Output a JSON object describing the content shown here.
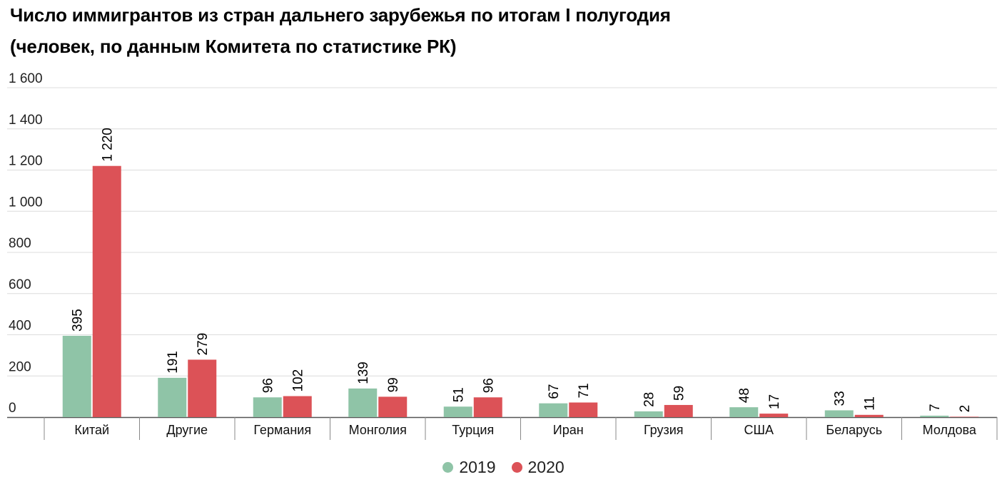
{
  "title_line1": "Число иммигрантов из стран дальнего зарубежья по итогам I полугодия",
  "title_line2": "(человек, по данным Комитета по статистике РК)",
  "chart_data": {
    "type": "bar",
    "title": "Число иммигрантов из стран дальнего зарубежья по итогам I полугодия (человек, по данным Комитета по статистике РК)",
    "categories": [
      "Китай",
      "Другие",
      "Германия",
      "Монголия",
      "Турция",
      "Иран",
      "Грузия",
      "США",
      "Беларусь",
      "Молдова"
    ],
    "series": [
      {
        "name": "2019",
        "color": "#8fc4a7",
        "values": [
          395,
          191,
          96,
          139,
          51,
          67,
          28,
          48,
          33,
          7
        ]
      },
      {
        "name": "2020",
        "color": "#dc5257",
        "values": [
          1220,
          279,
          102,
          99,
          96,
          71,
          59,
          17,
          11,
          2
        ]
      }
    ],
    "yticks": [
      0,
      200,
      400,
      600,
      800,
      1000,
      1200,
      1400,
      1600
    ],
    "ytick_labels": [
      "0",
      "200",
      "400",
      "600",
      "800",
      "1 000",
      "1 200",
      "1 400",
      "1 600"
    ],
    "data_labels": [
      [
        "395",
        "191",
        "96",
        "139",
        "51",
        "67",
        "28",
        "48",
        "33",
        "7"
      ],
      [
        "1 220",
        "279",
        "102",
        "99",
        "96",
        "71",
        "59",
        "17",
        "11",
        "2"
      ]
    ],
    "ylim": [
      0,
      1600
    ],
    "grid": true,
    "legend_position": "bottom"
  }
}
